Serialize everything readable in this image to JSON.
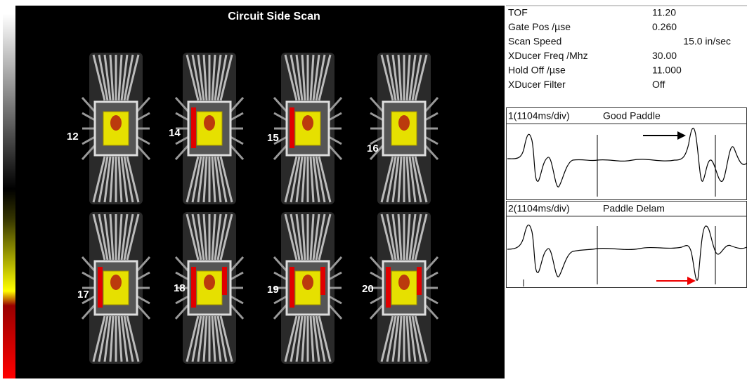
{
  "scan": {
    "title": "Circuit Side Scan",
    "chips": [
      "12",
      "14",
      "15",
      "16",
      "17",
      "18",
      "19",
      "20"
    ]
  },
  "parameters": [
    {
      "label": "TOF",
      "value": "11.20"
    },
    {
      "label": "Gate Pos /µse",
      "value": "0.260"
    },
    {
      "label": "Scan Speed",
      "value": "15.0 in/sec"
    },
    {
      "label": "XDucer Freq /Mhz",
      "value": "30.00"
    },
    {
      "label": "Hold Off /µse",
      "value": "11.000"
    },
    {
      "label": "XDucer Filter",
      "value": "Off"
    }
  ],
  "waveforms": [
    {
      "channel": "1(1104ms/div)",
      "label": "Good Paddle"
    },
    {
      "channel": "2(1104ms/div)",
      "label": "Paddle Delam"
    }
  ]
}
